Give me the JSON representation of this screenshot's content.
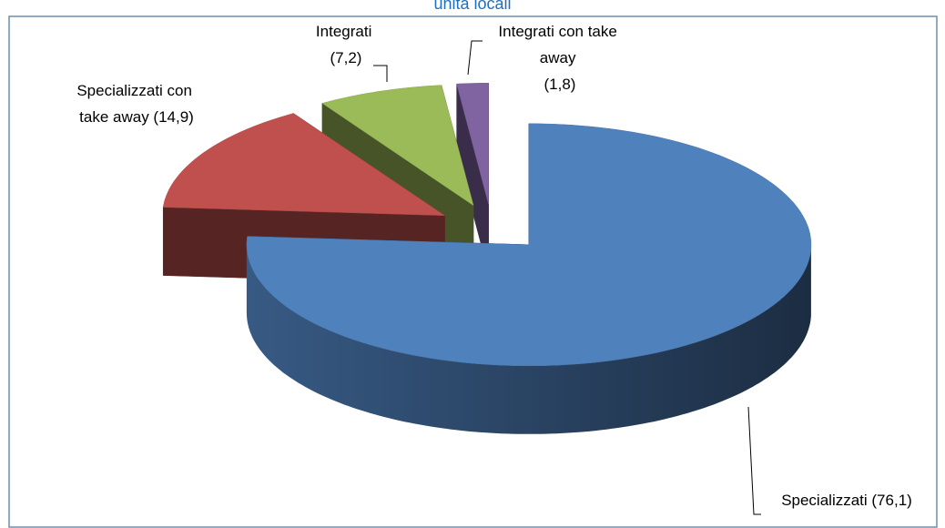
{
  "chart_data": {
    "type": "pie3d",
    "title": "unità locali",
    "categories": [
      "Specializzati",
      "Specializzati con take away",
      "Integrati",
      "Integrati con take away"
    ],
    "values": [
      76.1,
      14.9,
      7.2,
      1.8
    ],
    "value_labels": [
      "Specializzati (76,1)",
      "Specializzati con take away (14,9)",
      "Integrati (7,2)",
      "Integrati con take away (1,8)"
    ],
    "colors": [
      "#4f81bd",
      "#c0504d",
      "#9bbb59",
      "#8064a2"
    ]
  }
}
